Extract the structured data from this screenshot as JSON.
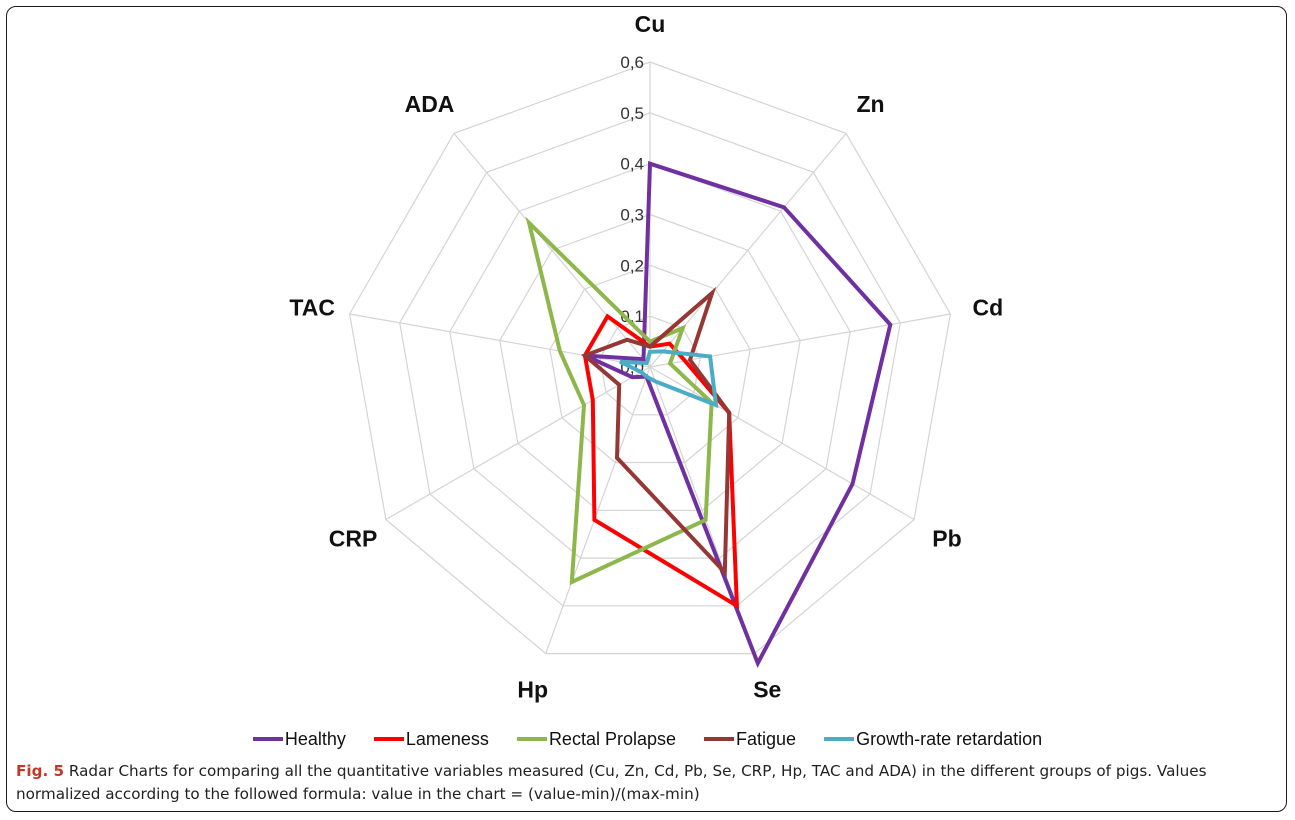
{
  "caption": {
    "label": "Fig. 5",
    "text": " Radar Charts for comparing all the quantitative variables measured (Cu, Zn, Cd, Pb, Se, CRP, Hp, TAC and ADA) in the different groups of pigs. Values normalized according to the followed formula: value in the chart = (value-min)/(max-min)"
  },
  "chart_data": {
    "type": "radar",
    "axes": [
      "Cu",
      "Zn",
      "Cd",
      "Pb",
      "Se",
      "Hp",
      "CRP",
      "TAC",
      "ADA"
    ],
    "r_ticks": [
      "0,0",
      "0,1",
      "0,2",
      "0,3",
      "0,4",
      "0,5",
      "0,6"
    ],
    "rlim": [
      0,
      0.6
    ],
    "grid": true,
    "legend_position": "bottom",
    "series": [
      {
        "name": "Healthy",
        "color": "#7030a0",
        "values": [
          0.4,
          0.41,
          0.48,
          0.46,
          0.62,
          0.02,
          0.04,
          0.13,
          0.02
        ]
      },
      {
        "name": "Lameness",
        "color": "#ff0000",
        "values": [
          0.04,
          0.06,
          0.07,
          0.18,
          0.5,
          0.32,
          0.13,
          0.13,
          0.13
        ]
      },
      {
        "name": "Rectal Prolapse",
        "color": "#8db64b",
        "values": [
          0.05,
          0.1,
          0.04,
          0.14,
          0.32,
          0.45,
          0.15,
          0.18,
          0.37
        ]
      },
      {
        "name": "Fatigue",
        "color": "#953735",
        "values": [
          0.04,
          0.19,
          0.08,
          0.18,
          0.43,
          0.19,
          0.07,
          0.13,
          0.07
        ]
      },
      {
        "name": "Growth-rate retardation",
        "color": "#4bacc6",
        "values": [
          0.03,
          0.04,
          0.12,
          0.15,
          0.03,
          0.02,
          0.02,
          0.06,
          0.01
        ]
      }
    ]
  }
}
